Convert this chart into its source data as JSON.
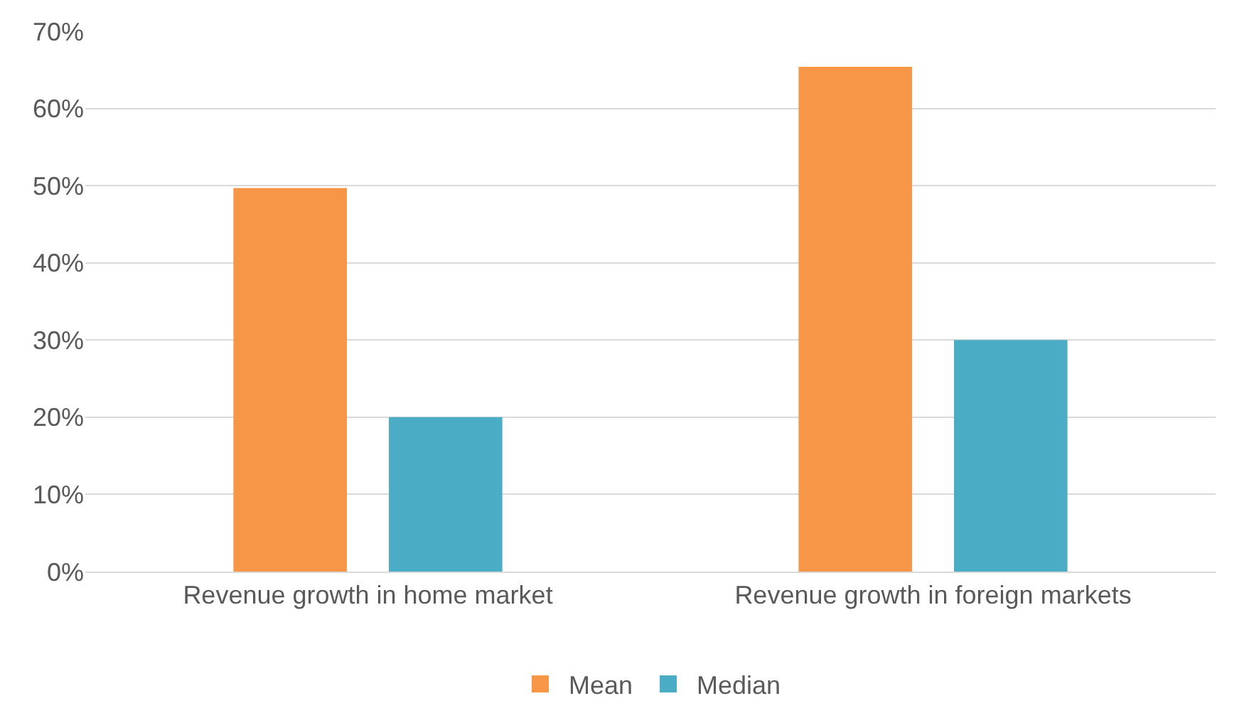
{
  "chart_data": {
    "type": "bar",
    "categories": [
      "Revenue growth in home market",
      "Revenue growth in foreign markets"
    ],
    "series": [
      {
        "name": "Mean",
        "color": "#f79646",
        "values": [
          49.7,
          65.4
        ]
      },
      {
        "name": "Median",
        "color": "#4bacc6",
        "values": [
          20,
          30
        ]
      }
    ],
    "ylim": [
      0,
      70
    ],
    "yticks": [
      {
        "value": 0,
        "label": "0%"
      },
      {
        "value": 10,
        "label": "10%"
      },
      {
        "value": 20,
        "label": "20%"
      },
      {
        "value": 30,
        "label": "30%"
      },
      {
        "value": 40,
        "label": "40%"
      },
      {
        "value": 50,
        "label": "50%"
      },
      {
        "value": 60,
        "label": "60%"
      },
      {
        "value": 70,
        "label": "70%"
      }
    ],
    "grid": "y",
    "legend": "bottom"
  }
}
